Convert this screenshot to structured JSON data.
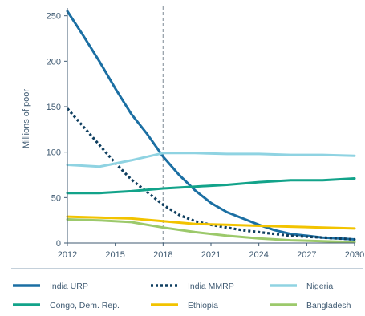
{
  "chart_data": {
    "type": "line",
    "title": "",
    "xlabel": "",
    "ylabel": "Millions of poor",
    "xlim": [
      2012,
      2030
    ],
    "ylim": [
      0,
      255
    ],
    "x_ticks": [
      "2012",
      "2015",
      "2018",
      "2021",
      "2024",
      "2027",
      "2030"
    ],
    "y_ticks": [
      "0",
      "50",
      "100",
      "150",
      "200",
      "250"
    ],
    "reference_line_x": 2018,
    "legend_position": "bottom",
    "series": [
      {
        "name": "India URP",
        "color": "#1b6fa3",
        "style": "solid",
        "x": [
          2012,
          2013,
          2014,
          2015,
          2016,
          2017,
          2018,
          2019,
          2020,
          2021,
          2022,
          2023,
          2024,
          2025,
          2026,
          2027,
          2028,
          2029,
          2030
        ],
        "y": [
          255,
          228,
          200,
          170,
          142,
          120,
          95,
          75,
          58,
          44,
          34,
          27,
          20,
          14,
          10,
          8,
          6,
          5,
          4
        ]
      },
      {
        "name": "India MMRP",
        "color": "#0f3f60",
        "style": "dotted",
        "x": [
          2012,
          2013,
          2014,
          2015,
          2016,
          2017,
          2018,
          2019,
          2020,
          2021,
          2022,
          2023,
          2024,
          2025,
          2026,
          2027,
          2028,
          2029,
          2030
        ],
        "y": [
          148,
          128,
          108,
          88,
          70,
          56,
          42,
          31,
          24,
          20,
          17,
          14,
          12,
          10,
          8,
          7,
          6,
          5,
          4
        ]
      },
      {
        "name": "Nigeria",
        "color": "#8fd3e2",
        "style": "solid",
        "x": [
          2012,
          2014,
          2016,
          2018,
          2020,
          2022,
          2024,
          2026,
          2028,
          2030
        ],
        "y": [
          86,
          84,
          91,
          99,
          99,
          98,
          98,
          97,
          97,
          96
        ]
      },
      {
        "name": "Congo, Dem. Rep.",
        "color": "#12a38a",
        "style": "solid",
        "x": [
          2012,
          2014,
          2016,
          2018,
          2020,
          2022,
          2024,
          2026,
          2028,
          2030
        ],
        "y": [
          55,
          55,
          57,
          60,
          62,
          64,
          67,
          69,
          69,
          71
        ]
      },
      {
        "name": "Ethiopia",
        "color": "#f2c300",
        "style": "solid",
        "x": [
          2012,
          2014,
          2016,
          2018,
          2020,
          2022,
          2024,
          2026,
          2028,
          2030
        ],
        "y": [
          29,
          28,
          27,
          24,
          21,
          20,
          19,
          18,
          17,
          16
        ]
      },
      {
        "name": "Bangladesh",
        "color": "#9cc96b",
        "style": "solid",
        "x": [
          2012,
          2014,
          2016,
          2018,
          2020,
          2022,
          2024,
          2026,
          2028,
          2030
        ],
        "y": [
          26,
          25,
          23,
          17,
          12,
          8,
          5,
          3,
          2,
          1
        ]
      }
    ]
  }
}
